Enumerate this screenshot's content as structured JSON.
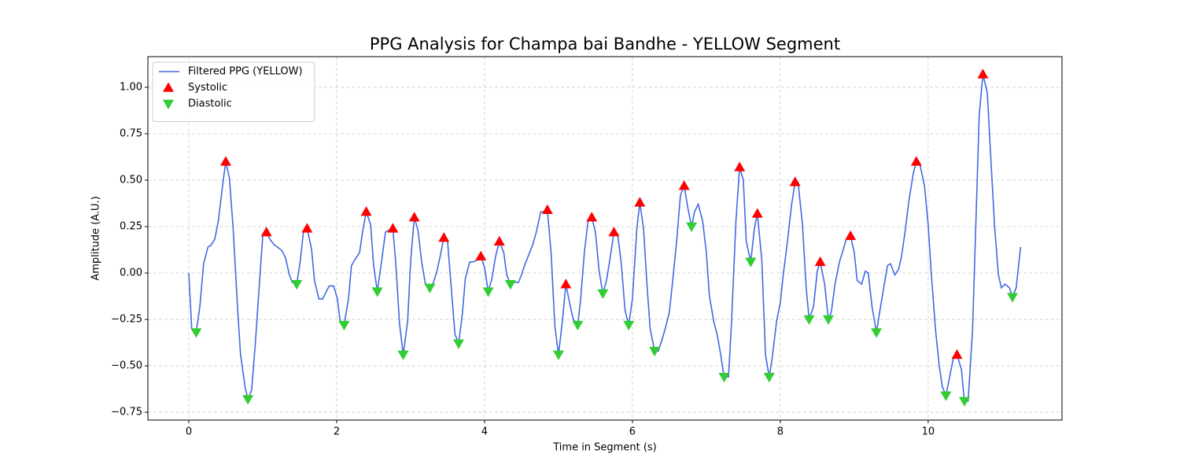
{
  "chart_data": {
    "type": "line",
    "title": "PPG Analysis for Champa bai Bandhe - YELLOW Segment",
    "x_label": "Time in Segment (s)",
    "y_label": "Amplitude (A.U.)",
    "xlim": [
      -0.553,
      11.81
    ],
    "ylim": [
      -0.792,
      1.165
    ],
    "xticks": [
      0,
      2,
      4,
      6,
      8,
      10
    ],
    "yticks": [
      {
        "value": -0.75,
        "label": "−0.75"
      },
      {
        "value": -0.5,
        "label": "−0.50"
      },
      {
        "value": -0.25,
        "label": "−0.25"
      },
      {
        "value": 0,
        "label": "0.00"
      },
      {
        "value": 0.25,
        "label": "0.25"
      },
      {
        "value": 0.5,
        "label": "0.50"
      },
      {
        "value": 0.75,
        "label": "0.75"
      },
      {
        "value": 1,
        "label": "1.00"
      }
    ],
    "grid": true,
    "legend_position": "upper left",
    "series": [
      {
        "name": "Filtered PPG (YELLOW)",
        "color": "#4169e1",
        "type": "line",
        "x": [
          0,
          0.04,
          0.1,
          0.15,
          0.2,
          0.26,
          0.3,
          0.35,
          0.4,
          0.46,
          0.5,
          0.55,
          0.6,
          0.66,
          0.7,
          0.76,
          0.8,
          0.85,
          0.9,
          0.96,
          1.0,
          1.05,
          1.1,
          1.16,
          1.2,
          1.26,
          1.31,
          1.36,
          1.4,
          1.46,
          1.51,
          1.55,
          1.6,
          1.66,
          1.7,
          1.76,
          1.81,
          1.86,
          1.9,
          1.96,
          2.01,
          2.05,
          2.1,
          2.16,
          2.2,
          2.26,
          2.31,
          2.35,
          2.4,
          2.46,
          2.5,
          2.55,
          2.61,
          2.66,
          2.7,
          2.76,
          2.8,
          2.85,
          2.9,
          2.96,
          3.0,
          3.05,
          3.1,
          3.15,
          3.2,
          3.26,
          3.3,
          3.35,
          3.4,
          3.45,
          3.5,
          3.55,
          3.6,
          3.65,
          3.7,
          3.74,
          3.8,
          3.85,
          3.9,
          3.95,
          4.0,
          4.05,
          4.1,
          4.15,
          4.2,
          4.26,
          4.3,
          4.35,
          4.4,
          4.46,
          4.5,
          4.55,
          4.61,
          4.65,
          4.7,
          4.76,
          4.8,
          4.85,
          4.9,
          4.95,
          5.0,
          5.05,
          5.1,
          5.15,
          5.2,
          5.26,
          5.3,
          5.35,
          5.4,
          5.45,
          5.5,
          5.55,
          5.6,
          5.65,
          5.71,
          5.75,
          5.8,
          5.85,
          5.9,
          5.95,
          6.0,
          6.06,
          6.1,
          6.15,
          6.2,
          6.24,
          6.3,
          6.35,
          6.4,
          6.45,
          6.5,
          6.54,
          6.6,
          6.65,
          6.7,
          6.75,
          6.8,
          6.84,
          6.89,
          6.95,
          7.0,
          7.04,
          7.1,
          7.15,
          7.19,
          7.24,
          7.3,
          7.34,
          7.4,
          7.45,
          7.5,
          7.54,
          7.6,
          7.65,
          7.69,
          7.75,
          7.8,
          7.85,
          7.89,
          7.95,
          8.0,
          8.04,
          8.1,
          8.15,
          8.2,
          8.24,
          8.3,
          8.35,
          8.39,
          8.45,
          8.5,
          8.54,
          8.6,
          8.65,
          8.69,
          8.74,
          8.8,
          8.84,
          8.89,
          8.95,
          9.0,
          9.04,
          9.1,
          9.15,
          9.19,
          9.24,
          9.3,
          9.34,
          9.39,
          9.45,
          9.49,
          9.55,
          9.6,
          9.64,
          9.69,
          9.74,
          9.8,
          9.84,
          9.89,
          9.95,
          10.0,
          10.04,
          10.1,
          10.15,
          10.19,
          10.24,
          10.3,
          10.34,
          10.39,
          10.45,
          10.49,
          10.54,
          10.6,
          10.65,
          10.69,
          10.74,
          10.8,
          10.84,
          10.9,
          10.95,
          10.99,
          11.04,
          11.1,
          11.14,
          11.19,
          11.25
        ],
        "values": [
          0,
          -0.3,
          -0.32,
          -0.18,
          0.05,
          0.14,
          0.15,
          0.18,
          0.28,
          0.48,
          0.6,
          0.51,
          0.24,
          -0.19,
          -0.44,
          -0.61,
          -0.68,
          -0.63,
          -0.38,
          -0.03,
          0.2,
          0.22,
          0.18,
          0.15,
          0.14,
          0.12,
          0.08,
          -0.01,
          -0.05,
          -0.06,
          0.07,
          0.22,
          0.24,
          0.13,
          -0.04,
          -0.14,
          -0.14,
          -0.1,
          -0.07,
          -0.07,
          -0.14,
          -0.27,
          -0.28,
          -0.14,
          0.04,
          0.08,
          0.11,
          0.22,
          0.33,
          0.26,
          0.04,
          -0.1,
          0.07,
          0.22,
          0.23,
          0.24,
          0.05,
          -0.27,
          -0.44,
          -0.26,
          0.06,
          0.3,
          0.23,
          0.06,
          -0.06,
          -0.08,
          -0.06,
          0,
          0.09,
          0.19,
          0.17,
          -0.08,
          -0.33,
          -0.38,
          -0.22,
          -0.03,
          0.06,
          0.06,
          0.07,
          0.09,
          0.03,
          -0.1,
          -0.03,
          0.09,
          0.17,
          0.11,
          -0.01,
          -0.06,
          -0.05,
          -0.05,
          -0.01,
          0.05,
          0.11,
          0.15,
          0.22,
          0.33,
          0.33,
          0.34,
          0.11,
          -0.28,
          -0.44,
          -0.27,
          -0.06,
          -0.16,
          -0.25,
          -0.28,
          -0.14,
          0.11,
          0.28,
          0.3,
          0.22,
          0.01,
          -0.11,
          -0.04,
          0.11,
          0.22,
          0.21,
          0.05,
          -0.2,
          -0.28,
          -0.14,
          0.24,
          0.38,
          0.24,
          -0.08,
          -0.3,
          -0.42,
          -0.42,
          -0.36,
          -0.29,
          -0.21,
          -0.06,
          0.18,
          0.42,
          0.47,
          0.35,
          0.25,
          0.33,
          0.37,
          0.28,
          0.11,
          -0.12,
          -0.26,
          -0.34,
          -0.43,
          -0.56,
          -0.56,
          -0.27,
          0.28,
          0.57,
          0.5,
          0.17,
          0.06,
          0.24,
          0.32,
          0.07,
          -0.44,
          -0.56,
          -0.46,
          -0.26,
          -0.16,
          -0.01,
          0.18,
          0.36,
          0.49,
          0.49,
          0.26,
          -0.08,
          -0.25,
          -0.18,
          0.01,
          0.06,
          -0.06,
          -0.25,
          -0.21,
          -0.06,
          0.06,
          0.11,
          0.18,
          0.2,
          0.11,
          -0.04,
          -0.06,
          0.01,
          0,
          -0.18,
          -0.32,
          -0.22,
          -0.1,
          0.04,
          0.05,
          -0.01,
          0.02,
          0.09,
          0.23,
          0.39,
          0.54,
          0.6,
          0.58,
          0.47,
          0.26,
          0.01,
          -0.31,
          -0.5,
          -0.61,
          -0.66,
          -0.54,
          -0.46,
          -0.44,
          -0.52,
          -0.69,
          -0.69,
          -0.31,
          0.33,
          0.85,
          1.07,
          0.97,
          0.67,
          0.24,
          -0.01,
          -0.08,
          -0.06,
          -0.08,
          -0.13,
          -0.08,
          0.14
        ]
      },
      {
        "name": "Systolic",
        "color": "#ff0000",
        "type": "scatter",
        "marker": "triangle-up",
        "x": [
          0.5,
          1.05,
          1.6,
          2.4,
          2.76,
          3.05,
          3.45,
          3.95,
          4.2,
          4.85,
          5.1,
          5.45,
          5.75,
          6.1,
          6.7,
          7.45,
          7.69,
          8.2,
          8.54,
          8.95,
          9.84,
          10.39,
          10.74
        ],
        "values": [
          0.6,
          0.22,
          0.24,
          0.33,
          0.24,
          0.3,
          0.19,
          0.09,
          0.17,
          0.34,
          -0.06,
          0.3,
          0.22,
          0.38,
          0.47,
          0.57,
          0.32,
          0.49,
          0.06,
          0.2,
          0.6,
          -0.44,
          1.07
        ]
      },
      {
        "name": "Diastolic",
        "color": "#32cd32",
        "type": "scatter",
        "marker": "triangle-down",
        "x": [
          0.1,
          0.8,
          1.46,
          2.1,
          2.55,
          2.9,
          3.26,
          3.65,
          4.05,
          4.35,
          5.0,
          5.26,
          5.6,
          5.95,
          6.3,
          6.8,
          7.24,
          7.6,
          7.85,
          8.39,
          8.65,
          9.3,
          10.24,
          10.49,
          11.14
        ],
        "values": [
          -0.32,
          -0.68,
          -0.06,
          -0.28,
          -0.1,
          -0.44,
          -0.08,
          -0.38,
          -0.1,
          -0.06,
          -0.44,
          -0.28,
          -0.11,
          -0.28,
          -0.42,
          0.25,
          -0.56,
          0.06,
          -0.56,
          -0.25,
          -0.25,
          -0.32,
          -0.66,
          -0.69,
          -0.13
        ]
      }
    ]
  }
}
